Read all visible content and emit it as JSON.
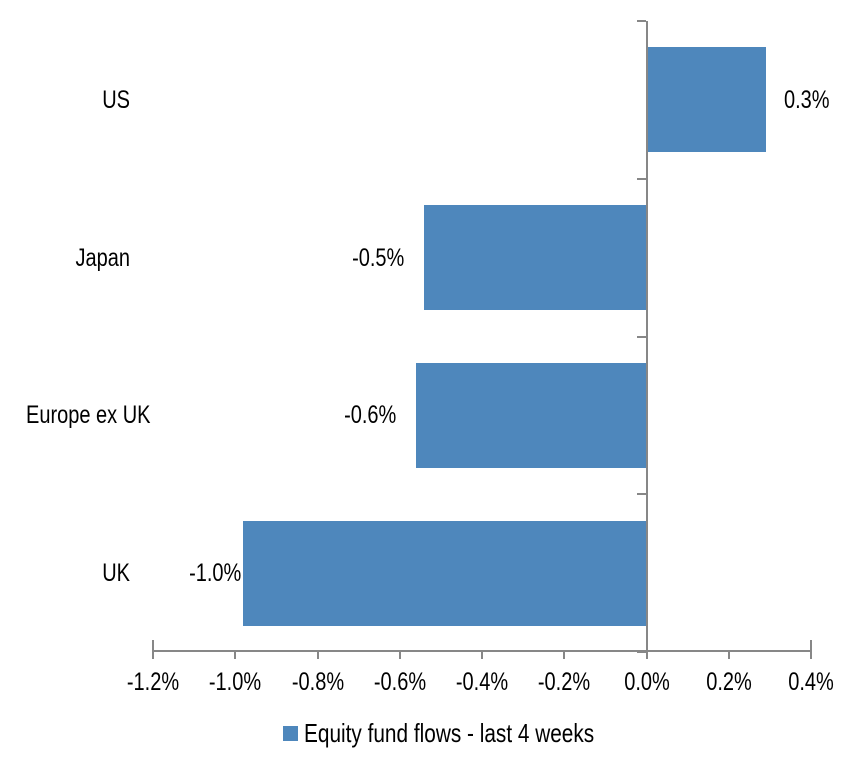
{
  "chart_data": {
    "type": "bar",
    "orientation": "horizontal",
    "title": "",
    "categories": [
      "US",
      "Japan",
      "Europe ex UK",
      "UK"
    ],
    "values": [
      0.3,
      -0.5,
      -0.6,
      -1.0
    ],
    "values_precise": [
      0.29,
      -0.54,
      -0.56,
      -0.98
    ],
    "data_labels": [
      "0.3%",
      "-0.5%",
      "-0.6%",
      "-1.0%"
    ],
    "x_ticks": [
      -1.2,
      -1.0,
      -0.8,
      -0.6,
      -0.4,
      -0.2,
      0.0,
      0.2,
      0.4
    ],
    "x_tick_labels": [
      "-1.2%",
      "-1.0%",
      "-0.8%",
      "-0.6%",
      "-0.4%",
      "-0.2%",
      "0.0%",
      "0.2%",
      "0.4%"
    ],
    "xlim": [
      -1.2,
      0.4
    ],
    "grid": false,
    "legend": {
      "label": "Equity fund flows - last 4 weeks",
      "position": "bottom"
    },
    "colors": {
      "bar": "#4E87BC",
      "axis": "#878787",
      "text": "#000000",
      "background": "#FFFFFF"
    }
  }
}
